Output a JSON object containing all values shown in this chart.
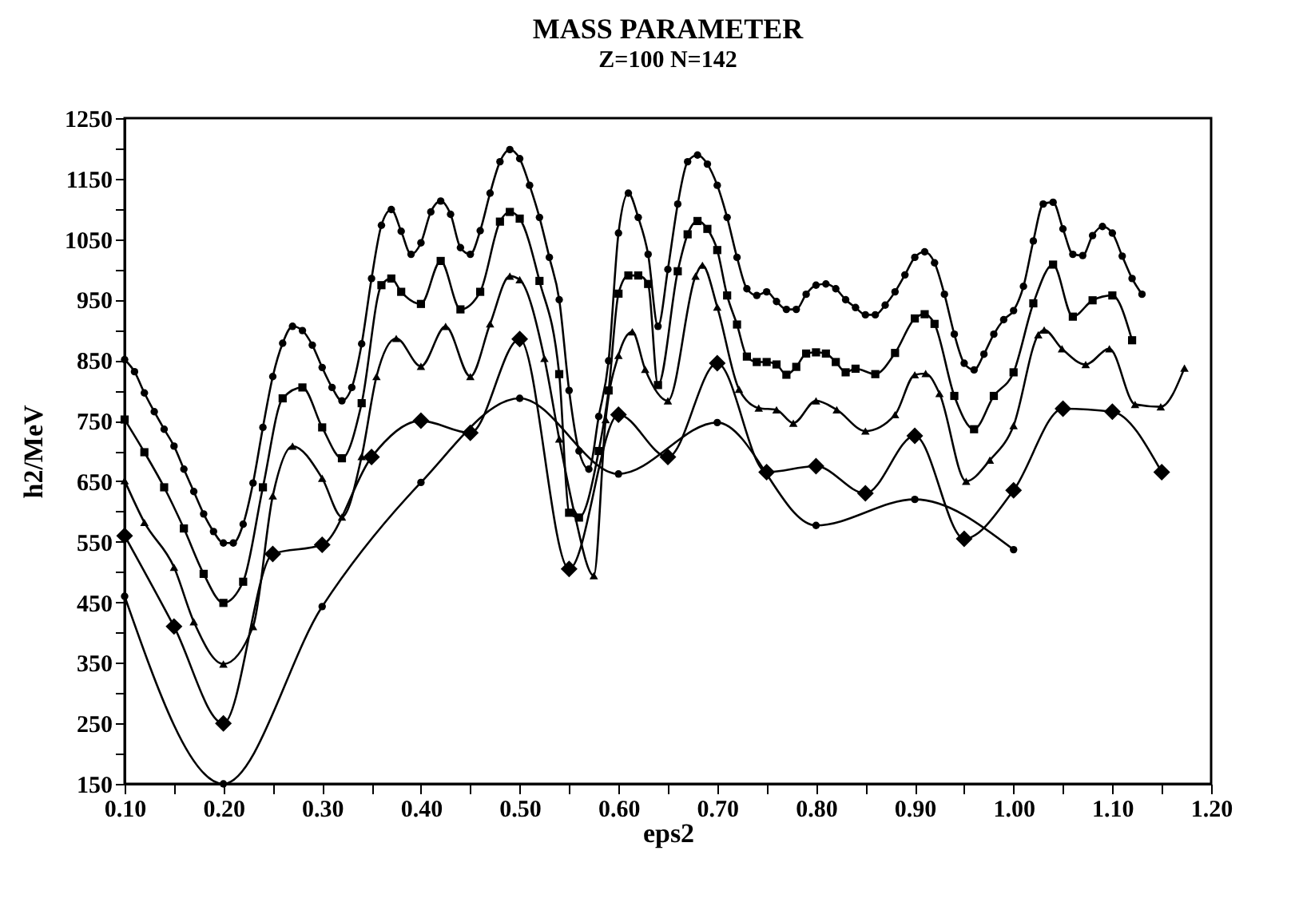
{
  "chart_data": {
    "type": "line",
    "title": "MASS PARAMETER",
    "subtitle": "Z=100 N=142",
    "xlabel": "eps2",
    "ylabel": "h2/MeV",
    "xlim": [
      0.1,
      1.2
    ],
    "ylim": [
      150,
      1250
    ],
    "xticks": [
      {
        "value": 0.1,
        "label": "0.10"
      },
      {
        "value": 0.15,
        "label": null
      },
      {
        "value": 0.2,
        "label": "0.20"
      },
      {
        "value": 0.25,
        "label": null
      },
      {
        "value": 0.3,
        "label": "0.30"
      },
      {
        "value": 0.35,
        "label": null
      },
      {
        "value": 0.4,
        "label": "0.40"
      },
      {
        "value": 0.45,
        "label": null
      },
      {
        "value": 0.5,
        "label": "0.50"
      },
      {
        "value": 0.55,
        "label": null
      },
      {
        "value": 0.6,
        "label": "0.60"
      },
      {
        "value": 0.65,
        "label": null
      },
      {
        "value": 0.7,
        "label": "0.70"
      },
      {
        "value": 0.75,
        "label": null
      },
      {
        "value": 0.8,
        "label": "0.80"
      },
      {
        "value": 0.85,
        "label": null
      },
      {
        "value": 0.9,
        "label": "0.90"
      },
      {
        "value": 0.95,
        "label": null
      },
      {
        "value": 1.0,
        "label": "1.00"
      },
      {
        "value": 1.05,
        "label": null
      },
      {
        "value": 1.1,
        "label": "1.10"
      },
      {
        "value": 1.15,
        "label": null
      },
      {
        "value": 1.2,
        "label": "1.20"
      }
    ],
    "yticks": [
      150,
      {
        "value": 200,
        "label": null
      },
      250,
      {
        "value": 300,
        "label": null
      },
      350,
      {
        "value": 400,
        "label": null
      },
      450,
      {
        "value": 500,
        "label": null
      },
      550,
      {
        "value": 600,
        "label": null
      },
      650,
      {
        "value": 700,
        "label": null
      },
      750,
      {
        "value": 800,
        "label": null
      },
      850,
      {
        "value": 900,
        "label": null
      },
      950,
      {
        "value": 1000,
        "label": null
      },
      1050,
      {
        "value": 1100,
        "label": null
      },
      1150,
      {
        "value": 1200,
        "label": null
      },
      1250
    ],
    "grid": false,
    "line_style": "solid",
    "series": [
      {
        "color": "#000000",
        "marker": "circle",
        "x": [
          0.1,
          0.11,
          0.12,
          0.13,
          0.14,
          0.15,
          0.16,
          0.17,
          0.18,
          0.19,
          0.2,
          0.21,
          0.22,
          0.23,
          0.24,
          0.25,
          0.26,
          0.27,
          0.28,
          0.29,
          0.3,
          0.31,
          0.32,
          0.33,
          0.34,
          0.35,
          0.36,
          0.37,
          0.38,
          0.39,
          0.4,
          0.41,
          0.42,
          0.43,
          0.44,
          0.45,
          0.46,
          0.47,
          0.48,
          0.49,
          0.5,
          0.51,
          0.52,
          0.53,
          0.54,
          0.55,
          0.56,
          0.57,
          0.58,
          0.59,
          0.6,
          0.61,
          0.62,
          0.63,
          0.64,
          0.65,
          0.66,
          0.67,
          0.68,
          0.69,
          0.7,
          0.71,
          0.72,
          0.73,
          0.74,
          0.75,
          0.76,
          0.77,
          0.78,
          0.79,
          0.8,
          0.81,
          0.82,
          0.83,
          0.84,
          0.85,
          0.86,
          0.87,
          0.88,
          0.89,
          0.9,
          0.91,
          0.92,
          0.93,
          0.94,
          0.95,
          0.96,
          0.97,
          0.98,
          0.99,
          1.0,
          1.01,
          1.02,
          1.03,
          1.04,
          1.05,
          1.06,
          1.07,
          1.08,
          1.09,
          1.1,
          1.11,
          1.12,
          1.13
        ],
        "values": [
          851,
          831,
          796,
          765,
          736,
          708,
          670,
          633,
          596,
          567,
          548,
          548,
          579,
          647,
          739,
          823,
          878,
          906,
          899,
          875,
          838,
          805,
          783,
          805,
          877,
          985,
          1073,
          1099,
          1063,
          1025,
          1044,
          1095,
          1113,
          1091,
          1036,
          1025,
          1064,
          1126,
          1178,
          1198,
          1183,
          1139,
          1086,
          1020,
          950,
          800,
          700,
          670,
          757,
          849,
          1060,
          1126,
          1086,
          1025,
          906,
          1000,
          1108,
          1178,
          1189,
          1174,
          1139,
          1086,
          1020,
          968,
          957,
          963,
          947,
          934,
          934,
          959,
          974,
          976,
          968,
          950,
          937,
          925,
          925,
          941,
          963,
          991,
          1020,
          1029,
          1011,
          959,
          893,
          845,
          834,
          860,
          893,
          917,
          932,
          972,
          1047,
          1108,
          1111,
          1067,
          1025,
          1023,
          1056,
          1071,
          1060,
          1022,
          985,
          959
        ]
      },
      {
        "color": "#000000",
        "marker": "square",
        "x": [
          0.1,
          0.12,
          0.14,
          0.16,
          0.18,
          0.2,
          0.22,
          0.24,
          0.26,
          0.28,
          0.3,
          0.32,
          0.34,
          0.36,
          0.37,
          0.38,
          0.4,
          0.42,
          0.44,
          0.46,
          0.48,
          0.49,
          0.5,
          0.52,
          0.54,
          0.55,
          0.56,
          0.58,
          0.59,
          0.6,
          0.61,
          0.62,
          0.63,
          0.64,
          0.66,
          0.67,
          0.68,
          0.69,
          0.7,
          0.71,
          0.72,
          0.73,
          0.74,
          0.75,
          0.76,
          0.77,
          0.78,
          0.79,
          0.8,
          0.81,
          0.82,
          0.83,
          0.84,
          0.86,
          0.88,
          0.9,
          0.91,
          0.92,
          0.94,
          0.96,
          0.98,
          1.0,
          1.02,
          1.04,
          1.06,
          1.08,
          1.1,
          1.12
        ],
        "values": [
          752,
          698,
          640,
          572,
          497,
          449,
          484,
          640,
          787,
          805,
          739,
          688,
          779,
          974,
          985,
          963,
          943,
          1014,
          934,
          963,
          1079,
          1095,
          1084,
          981,
          827,
          598,
          590,
          700,
          800,
          960,
          990,
          990,
          976,
          809,
          997,
          1058,
          1080,
          1067,
          1032,
          957,
          909,
          856,
          847,
          847,
          843,
          826,
          839,
          861,
          863,
          861,
          847,
          830,
          836,
          827,
          862,
          919,
          926,
          910,
          791,
          736,
          791,
          830,
          944,
          1008,
          922,
          949,
          957,
          883
        ]
      },
      {
        "color": "#000000",
        "marker": "triangle",
        "x": [
          0.1,
          0.12,
          0.15,
          0.17,
          0.2,
          0.23,
          0.25,
          0.27,
          0.3,
          0.32,
          0.34,
          0.355,
          0.375,
          0.4,
          0.425,
          0.45,
          0.47,
          0.49,
          0.5,
          0.525,
          0.54,
          0.555,
          0.575,
          0.587,
          0.6,
          0.614,
          0.627,
          0.65,
          0.678,
          0.685,
          0.7,
          0.722,
          0.742,
          0.76,
          0.777,
          0.8,
          0.821,
          0.85,
          0.88,
          0.9,
          0.911,
          0.925,
          0.952,
          0.976,
          1.0,
          1.025,
          1.031,
          1.049,
          1.073,
          1.097,
          1.123,
          1.149,
          1.173
        ],
        "values": [
          651,
          582,
          508,
          418,
          348,
          410,
          626,
          708,
          655,
          591,
          691,
          823,
          886,
          840,
          906,
          823,
          910,
          989,
          983,
          853,
          720,
          600,
          494,
          752,
          858,
          897,
          835,
          783,
          989,
          1007,
          938,
          802,
          771,
          768,
          746,
          783,
          768,
          733,
          760,
          826,
          828,
          795,
          650,
          685,
          742,
          892,
          900,
          869,
          843,
          869,
          777,
          773,
          837
        ]
      },
      {
        "color": "#000000",
        "marker": "diamond",
        "x": [
          0.1,
          0.15,
          0.2,
          0.25,
          0.3,
          0.35,
          0.4,
          0.45,
          0.5,
          0.55,
          0.6,
          0.65,
          0.7,
          0.75,
          0.8,
          0.85,
          0.9,
          0.95,
          1.0,
          1.05,
          1.1,
          1.15
        ],
        "values": [
          560,
          410,
          250,
          530,
          545,
          690,
          750,
          730,
          885,
          505,
          760,
          690,
          845,
          665,
          675,
          630,
          725,
          555,
          635,
          770,
          765,
          665
        ]
      },
      {
        "color": "#000000",
        "marker": "circle",
        "x": [
          0.1,
          0.2,
          0.3,
          0.4,
          0.5,
          0.6,
          0.7,
          0.8,
          0.9,
          1.0
        ],
        "values": [
          460,
          150,
          443,
          648,
          787,
          662,
          747,
          577,
          620,
          537
        ]
      }
    ]
  }
}
